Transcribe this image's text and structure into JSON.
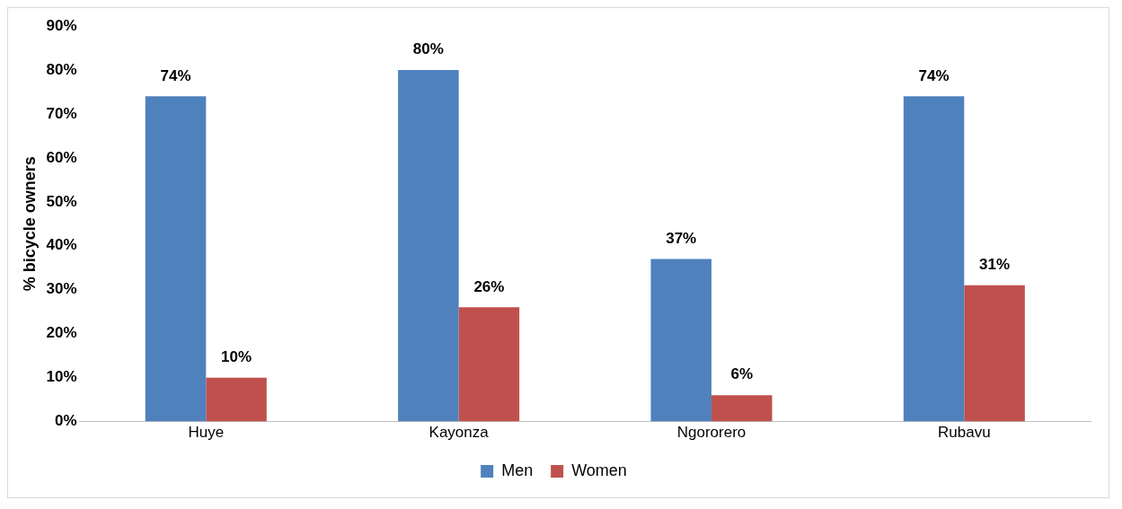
{
  "chart_data": {
    "type": "bar",
    "ylabel": "% bicycle owners",
    "categories": [
      "Huye",
      "Kayonza",
      "Ngororero",
      "Rubavu"
    ],
    "series": [
      {
        "name": "Men",
        "color": "#4f81bd",
        "values": [
          74,
          80,
          37,
          74
        ]
      },
      {
        "name": "Women",
        "color": "#c0504d",
        "values": [
          10,
          26,
          6,
          31
        ]
      }
    ],
    "value_labels": [
      [
        "74%",
        "80%",
        "37%",
        "74%"
      ],
      [
        "10%",
        "26%",
        "6%",
        "31%"
      ]
    ],
    "ylim": [
      0,
      90
    ],
    "yticks": [
      {
        "value": 0,
        "label": "0%"
      },
      {
        "value": 10,
        "label": "10%"
      },
      {
        "value": 20,
        "label": "20%"
      },
      {
        "value": 30,
        "label": "30%"
      },
      {
        "value": 40,
        "label": "40%"
      },
      {
        "value": 50,
        "label": "50%"
      },
      {
        "value": 60,
        "label": "60%"
      },
      {
        "value": 70,
        "label": "70%"
      },
      {
        "value": 80,
        "label": "80%"
      },
      {
        "value": 90,
        "label": "90%"
      }
    ],
    "grid": false,
    "legend": "bottom"
  }
}
